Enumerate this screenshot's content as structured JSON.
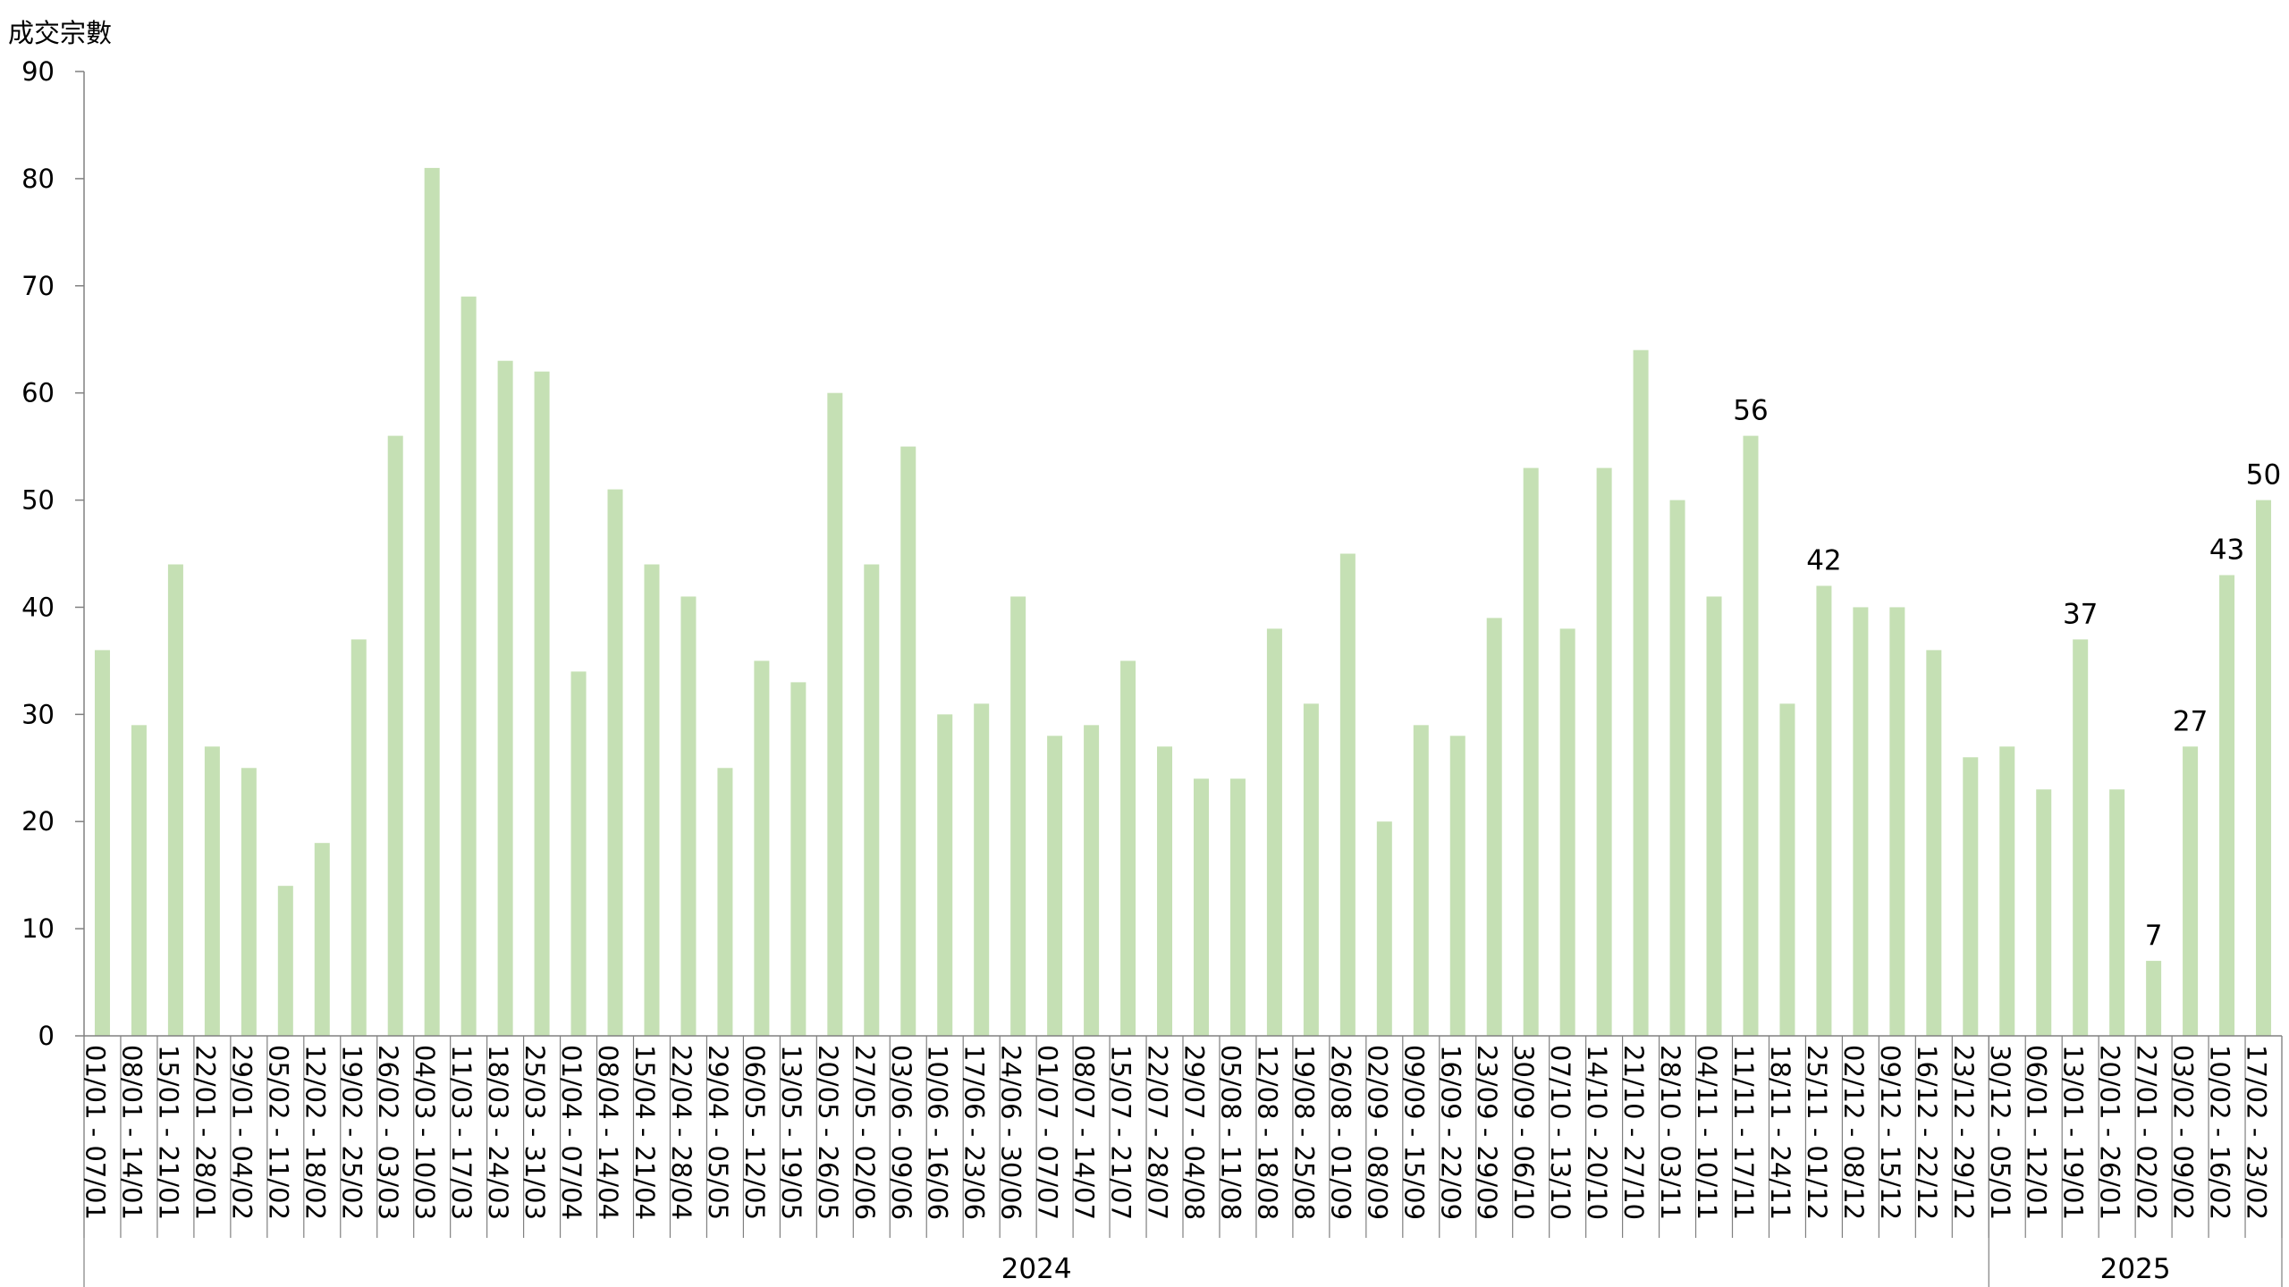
{
  "chart_data": {
    "type": "bar",
    "title": "",
    "xlabel": "",
    "ylabel": "成交宗數",
    "ylim": [
      0,
      90
    ],
    "yticks": [
      "0",
      "10",
      "20",
      "30",
      "40",
      "50",
      "60",
      "70",
      "80",
      "90"
    ],
    "bar_color": "#c5e0b4",
    "grid": false,
    "legend": "none",
    "categories": [
      "01/01 - 07/01",
      "08/01 - 14/01",
      "15/01 - 21/01",
      "22/01 - 28/01",
      "29/01 - 04/02",
      "05/02 - 11/02",
      "12/02 - 18/02",
      "19/02 - 25/02",
      "26/02 - 03/03",
      "04/03 - 10/03",
      "11/03 - 17/03",
      "18/03 - 24/03",
      "25/03 - 31/03",
      "01/04 - 07/04",
      "08/04 - 14/04",
      "15/04 - 21/04",
      "22/04 - 28/04",
      "29/04 - 05/05",
      "06/05 - 12/05",
      "13/05 - 19/05",
      "20/05 - 26/05",
      "27/05 - 02/06",
      "03/06 - 09/06",
      "10/06 - 16/06",
      "17/06 - 23/06",
      "24/06 - 30/06",
      "01/07 - 07/07",
      "08/07 - 14/07",
      "15/07 - 21/07",
      "22/07 - 28/07",
      "29/07 - 04/08",
      "05/08 - 11/08",
      "12/08 - 18/08",
      "19/08 - 25/08",
      "26/08 - 01/09",
      "02/09 - 08/09",
      "09/09 - 15/09",
      "16/09 - 22/09",
      "23/09 - 29/09",
      "30/09 - 06/10",
      "07/10 - 13/10",
      "14/10 - 20/10",
      "21/10 - 27/10",
      "28/10 - 03/11",
      "04/11 - 10/11",
      "11/11 - 17/11",
      "18/11 - 24/11",
      "25/11 - 01/12",
      "02/12 - 08/12",
      "09/12 - 15/12",
      "16/12 - 22/12",
      "23/12 - 29/12",
      "30/12 - 05/01",
      "06/01 - 12/01",
      "13/01 - 19/01",
      "20/01 - 26/01",
      "27/01 - 02/02",
      "03/02 - 09/02",
      "10/02 - 16/02",
      "17/02 - 23/02"
    ],
    "values": [
      36,
      29,
      44,
      27,
      25,
      14,
      18,
      37,
      56,
      81,
      69,
      63,
      62,
      34,
      51,
      44,
      41,
      25,
      35,
      33,
      60,
      44,
      55,
      30,
      31,
      41,
      28,
      29,
      35,
      27,
      24,
      24,
      38,
      31,
      45,
      20,
      29,
      28,
      39,
      53,
      38,
      53,
      64,
      50,
      41,
      56,
      31,
      42,
      40,
      40,
      36,
      26,
      27,
      23,
      37,
      23,
      7,
      27,
      43,
      50
    ],
    "data_labels": [
      {
        "index": 45,
        "text": "56"
      },
      {
        "index": 47,
        "text": "42"
      },
      {
        "index": 54,
        "text": "37"
      },
      {
        "index": 56,
        "text": "7"
      },
      {
        "index": 57,
        "text": "27"
      },
      {
        "index": 58,
        "text": "43"
      },
      {
        "index": 59,
        "text": "50"
      }
    ],
    "year_groups": [
      {
        "label": "2024",
        "start": 0,
        "end": 51
      },
      {
        "label": "2025",
        "start": 52,
        "end": 59
      }
    ]
  }
}
